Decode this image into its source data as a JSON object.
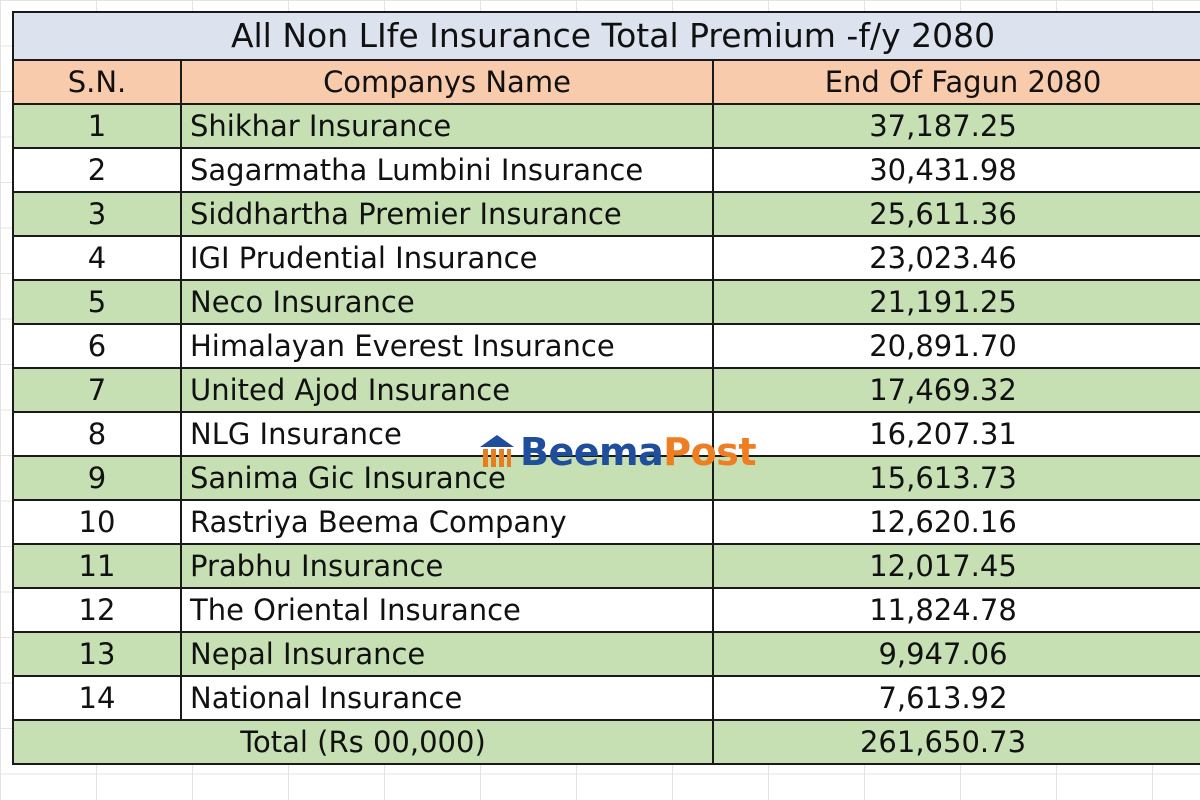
{
  "title": "All Non LIfe Insurance Total Premium -f/y 2080",
  "headers": {
    "sn": "S.N.",
    "name": "Companys Name",
    "value": "End Of Fagun 2080"
  },
  "rows": [
    {
      "sn": "1",
      "name": "Shikhar Insurance",
      "value": "37,187.25"
    },
    {
      "sn": "2",
      "name": "Sagarmatha Lumbini Insurance",
      "value": "30,431.98"
    },
    {
      "sn": "3",
      "name": "Siddhartha Premier Insurance",
      "value": "25,611.36"
    },
    {
      "sn": "4",
      "name": "IGI Prudential Insurance",
      "value": "23,023.46"
    },
    {
      "sn": "5",
      "name": "Neco Insurance",
      "value": "21,191.25"
    },
    {
      "sn": "6",
      "name": "Himalayan Everest Insurance",
      "value": "20,891.70"
    },
    {
      "sn": "7",
      "name": "United Ajod Insurance",
      "value": "17,469.32"
    },
    {
      "sn": "8",
      "name": "NLG Insurance",
      "value": "16,207.31"
    },
    {
      "sn": "9",
      "name": "Sanima Gic Insurance",
      "value": "15,613.73"
    },
    {
      "sn": "10",
      "name": "Rastriya Beema Company",
      "value": "12,620.16"
    },
    {
      "sn": "11",
      "name": "Prabhu Insurance",
      "value": "12,017.45"
    },
    {
      "sn": "12",
      "name": "The Oriental Insurance",
      "value": "11,824.78"
    },
    {
      "sn": "13",
      "name": "Nepal Insurance",
      "value": "9,947.06"
    },
    {
      "sn": "14",
      "name": "National Insurance",
      "value": "7,613.92"
    }
  ],
  "total": {
    "label": "Total (Rs 00,000)",
    "value": "261,650.73"
  },
  "watermark": {
    "part1": "Beema",
    "part2": "Post",
    "icon": "bank-building-icon"
  },
  "colors": {
    "title_bg": "#dce3ef",
    "header_bg": "#f8cbad",
    "green_row": "#c6e0b4",
    "brand_blue": "#1f4e9c",
    "brand_orange": "#ef7d22"
  }
}
